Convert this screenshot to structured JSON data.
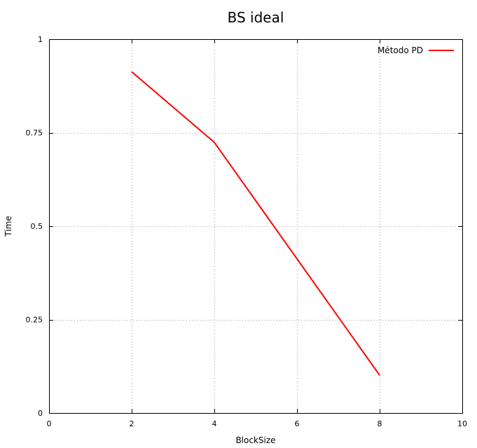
{
  "chart_data": {
    "type": "line",
    "title": "BS ideal",
    "xlabel": "BlockSize",
    "ylabel": "Time",
    "xlim": [
      0,
      10
    ],
    "ylim": [
      0,
      1
    ],
    "x_ticks": [
      0,
      2,
      4,
      6,
      8,
      10
    ],
    "y_ticks": [
      0,
      0.25,
      0.5,
      0.75,
      1
    ],
    "x_tick_labels": [
      "0",
      "2",
      "4",
      "6",
      "8",
      "10"
    ],
    "y_tick_labels": [
      "0",
      "0.25",
      "0.5",
      "0.75",
      "1"
    ],
    "grid": true,
    "legend_position": "top-right",
    "series": [
      {
        "name": "Método PD",
        "color": "#ff0000",
        "x": [
          2,
          4,
          8
        ],
        "y": [
          0.913,
          0.724,
          0.101
        ]
      }
    ]
  }
}
